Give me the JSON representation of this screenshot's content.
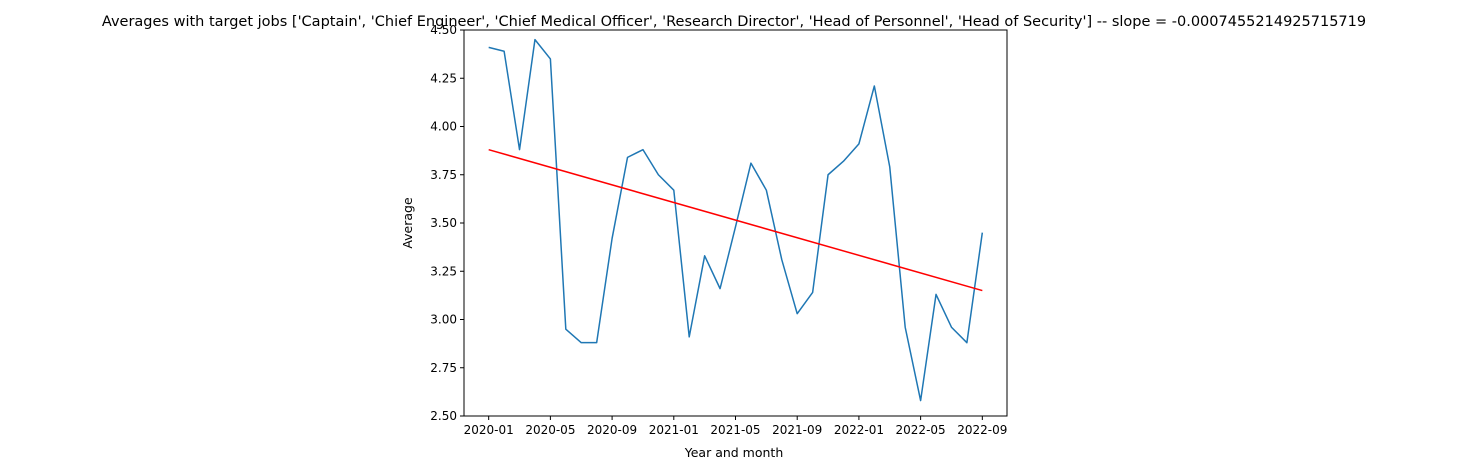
{
  "chart_data": {
    "type": "line",
    "title": "Averages with target jobs ['Captain', 'Chief Engineer', 'Chief Medical Officer', 'Research Director', 'Head of Personnel', 'Head of Security'] -- slope = -0.0007455214925715719",
    "xlabel": "Year and month",
    "ylabel": "Average",
    "ylim": [
      2.5,
      4.5
    ],
    "y_ticks": [
      "2.50",
      "2.75",
      "3.00",
      "3.25",
      "3.50",
      "3.75",
      "4.00",
      "4.25",
      "4.50"
    ],
    "x_ticks": [
      "2020-01",
      "2020-05",
      "2020-09",
      "2021-01",
      "2021-05",
      "2021-09",
      "2022-01",
      "2022-05",
      "2022-09"
    ],
    "grid": false,
    "series": [
      {
        "color": "#1f77b4",
        "x": [
          "2020-01",
          "2020-02",
          "2020-03",
          "2020-04",
          "2020-05",
          "2020-06",
          "2020-07",
          "2020-08",
          "2020-09",
          "2020-10",
          "2020-11",
          "2020-12",
          "2021-01",
          "2021-02",
          "2021-03",
          "2021-04",
          "2021-05",
          "2021-06",
          "2021-07",
          "2021-08",
          "2021-09",
          "2021-10",
          "2021-11",
          "2021-12",
          "2022-01",
          "2022-02",
          "2022-03",
          "2022-04",
          "2022-05",
          "2022-06",
          "2022-07",
          "2022-08",
          "2022-09"
        ],
        "y": [
          4.41,
          4.39,
          3.88,
          4.45,
          4.35,
          2.95,
          2.88,
          2.88,
          3.42,
          3.84,
          3.88,
          3.75,
          3.67,
          2.91,
          3.33,
          3.16,
          3.48,
          3.81,
          3.67,
          3.31,
          3.03,
          3.14,
          3.75,
          3.82,
          3.91,
          4.21,
          3.79,
          2.96,
          2.58,
          3.13,
          2.96,
          2.88,
          3.45
        ]
      },
      {
        "color": "#ff0000",
        "x": [
          "2020-01",
          "2022-09"
        ],
        "y": [
          3.88,
          3.15
        ]
      }
    ]
  }
}
